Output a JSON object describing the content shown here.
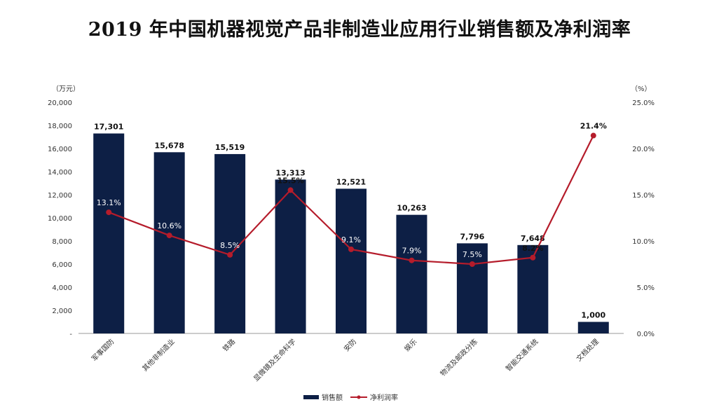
{
  "chart_data": {
    "type": "bar",
    "title": "2019 年中国机器视觉产品非制造业应用行业销售额及净利润率",
    "left_axis_unit": "（万元）",
    "right_axis_unit": "（%）",
    "categories": [
      "军事国防",
      "其他非制造业",
      "铁路",
      "显微镜及生命科学",
      "安防",
      "娱乐",
      "物流及邮政分拣",
      "智能交通系统",
      "文档处理"
    ],
    "series": [
      {
        "name": "销售额",
        "type": "bar",
        "axis": "left",
        "color": "#0d1f45",
        "values": [
          17301,
          15678,
          15519,
          13313,
          12521,
          10263,
          7796,
          7648,
          1000
        ],
        "labels": [
          "17,301",
          "15,678",
          "15,519",
          "13,313",
          "12,521",
          "10,263",
          "7,796",
          "7,648",
          "1,000"
        ]
      },
      {
        "name": "净利润率",
        "type": "line",
        "axis": "right",
        "color": "#b51c2b",
        "values": [
          13.1,
          10.6,
          8.5,
          15.5,
          9.1,
          7.9,
          7.5,
          8.2,
          21.4
        ],
        "labels": [
          "13.1%",
          "10.6%",
          "8.5%",
          "15.5%",
          "9.1%",
          "7.9%",
          "7.5%",
          "8.2%",
          "21.4%"
        ]
      }
    ],
    "left_axis": {
      "ylim": [
        0,
        20000
      ],
      "ticks": [
        "-",
        "2,000",
        "4,000",
        "6,000",
        "8,000",
        "10,000",
        "12,000",
        "14,000",
        "16,000",
        "18,000",
        "20,000"
      ]
    },
    "right_axis": {
      "ylim": [
        0,
        25
      ],
      "ticks": [
        "0.0%",
        "5.0%",
        "10.0%",
        "15.0%",
        "20.0%",
        "25.0%"
      ]
    },
    "grid": false,
    "legend_position": "bottom-center"
  }
}
